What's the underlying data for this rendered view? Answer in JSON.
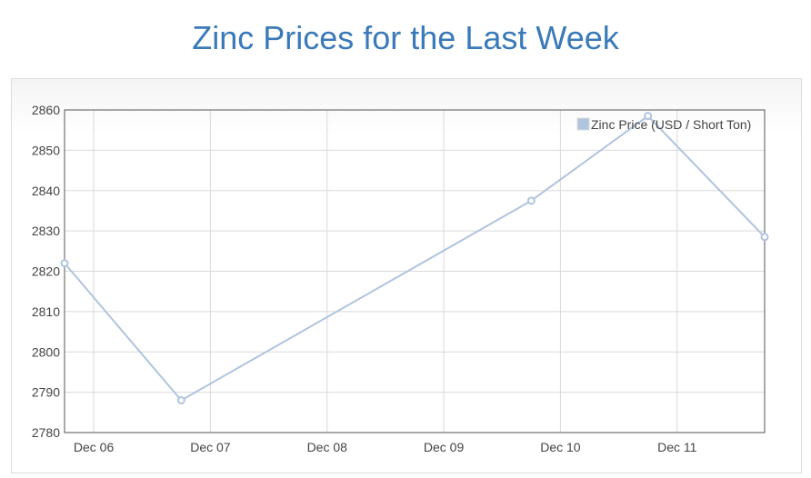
{
  "title": "Zinc Prices for the Last Week",
  "colors": {
    "title": "#3a7ab8",
    "series": "#b0c4de",
    "grid": "#d9d9d9",
    "axis": "#555555"
  },
  "chart_data": {
    "type": "line",
    "title": "",
    "xlabel": "",
    "ylabel": "",
    "x_ticks": [
      "Dec 06",
      "Dec 07",
      "Dec 08",
      "Dec 09",
      "Dec 10",
      "Dec 11"
    ],
    "y_ticks": [
      "2780",
      "2790",
      "2800",
      "2810",
      "2820",
      "2830",
      "2840",
      "2850",
      "2860"
    ],
    "ylim": [
      2780,
      2860
    ],
    "xlim": [
      "2016-12-05 18:00",
      "2016-12-11 18:00"
    ],
    "grid": true,
    "legend_position": "top-right",
    "series": [
      {
        "name": "Zinc Price (USD / Short Ton)",
        "points": [
          {
            "x": "2016-12-05 18:00",
            "y": 2822
          },
          {
            "x": "2016-12-06 18:00",
            "y": 2788
          },
          {
            "x": "2016-12-09 18:00",
            "y": 2837.5
          },
          {
            "x": "2016-12-10 18:00",
            "y": 2858.5
          },
          {
            "x": "2016-12-11 18:00",
            "y": 2828.5
          }
        ]
      }
    ]
  }
}
